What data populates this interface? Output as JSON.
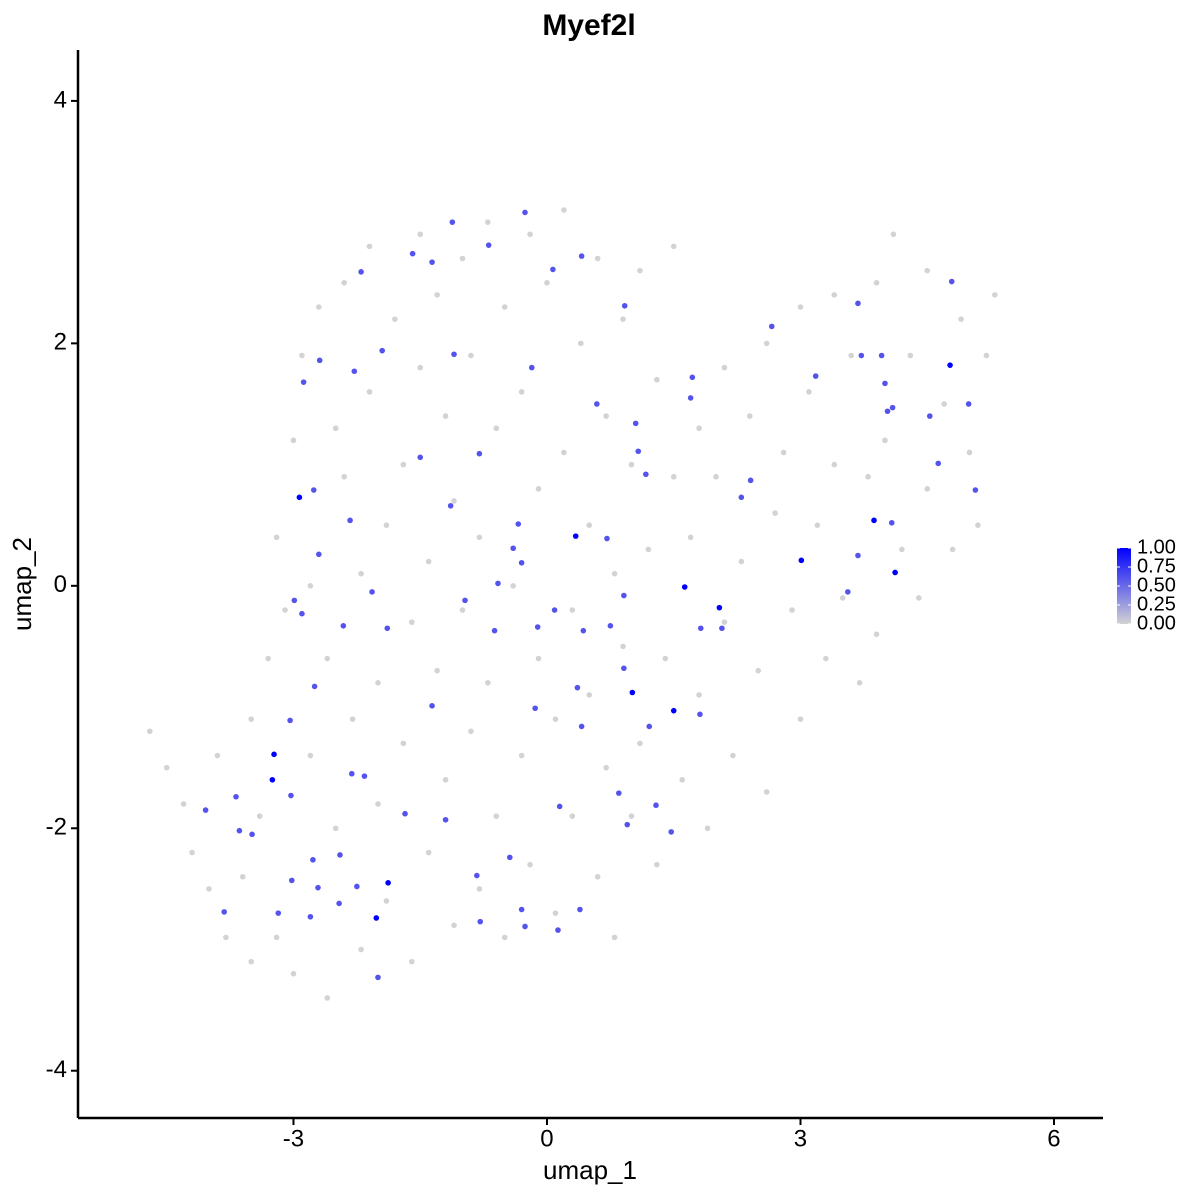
{
  "chart_data": {
    "type": "scatter",
    "title": "Myef2l",
    "x_label": "umap_1",
    "y_label": "umap_2",
    "xlim": [
      -5.55,
      6.58
    ],
    "ylim": [
      -4.39,
      4.42
    ],
    "xticks": [
      -3,
      0,
      3,
      6
    ],
    "yticks": [
      -4,
      -2,
      0,
      2,
      4
    ],
    "color_low": "#d3d3d3",
    "color_high": "#0000ff",
    "color_lim": [
      0,
      1
    ],
    "colorbar_ticks": [
      {
        "value": 1,
        "label": "1.00"
      },
      {
        "value": 0.75,
        "label": "0.75"
      },
      {
        "value": 0.5,
        "label": "0.50"
      },
      {
        "value": 0.25,
        "label": "0.25"
      },
      {
        "value": 0,
        "label": "0.00"
      }
    ],
    "x": [
      -4.7,
      -4.5,
      -4.3,
      -4.2,
      -4.0,
      -3.9,
      -3.8,
      -3.6,
      -3.5,
      -3.5,
      -3.3,
      -3.4,
      -3.2,
      -3.1,
      -3.2,
      -3.0,
      -3.0,
      -2.9,
      -2.8,
      -2.8,
      -2.7,
      -2.6,
      -2.6,
      -2.5,
      -2.5,
      -2.4,
      -2.4,
      -2.3,
      -2.2,
      -2.2,
      -2.1,
      -2.1,
      -2.0,
      -2.0,
      -1.9,
      -1.9,
      -1.8,
      -1.7,
      -1.7,
      -1.6,
      -1.6,
      -1.5,
      -1.5,
      -1.4,
      -1.4,
      -1.3,
      -1.3,
      -1.2,
      -1.2,
      -1.1,
      -1.1,
      -1.0,
      -1.0,
      -0.9,
      -0.9,
      -0.8,
      -0.8,
      -0.7,
      -0.7,
      -0.6,
      -0.6,
      -0.5,
      -0.5,
      -0.4,
      -0.3,
      -0.3,
      -0.2,
      -0.2,
      -0.1,
      -0.1,
      0.0,
      0.1,
      0.1,
      0.2,
      0.2,
      0.3,
      0.3,
      0.4,
      0.5,
      0.5,
      0.6,
      0.6,
      0.7,
      0.7,
      0.8,
      0.8,
      0.9,
      0.9,
      1.0,
      1.0,
      1.1,
      1.1,
      1.2,
      1.3,
      1.3,
      1.4,
      1.5,
      1.5,
      1.6,
      1.7,
      1.8,
      1.8,
      1.9,
      2.0,
      2.1,
      2.1,
      2.2,
      2.3,
      2.4,
      2.5,
      2.6,
      2.6,
      2.7,
      2.8,
      2.9,
      3.0,
      3.0,
      3.1,
      3.2,
      3.3,
      3.4,
      3.4,
      3.5,
      3.6,
      3.7,
      3.8,
      3.9,
      3.9,
      4.0,
      4.1,
      4.2,
      4.3,
      4.4,
      4.5,
      4.5,
      4.7,
      4.8,
      4.9,
      5.0,
      5.1,
      5.2,
      5.3,
      4.79,
      4.0,
      3.96,
      3.72,
      3.68,
      3.18,
      2.66,
      1.72,
      1.7,
      0.92,
      0.41,
      0.07,
      -0.26,
      -0.69,
      -1.12,
      -1.59,
      -1.36,
      -2.2,
      -2.88,
      -2.69,
      -2.28,
      -1.95,
      -1.1,
      -0.18,
      0.59,
      1.05,
      1.08,
      -0.8,
      -1.5,
      -2.76,
      -2.33,
      -2.7,
      -2.99,
      -2.9,
      -2.41,
      -2.07,
      -1.89,
      -1.14,
      -0.34,
      -0.4,
      -0.3,
      -0.58,
      -0.97,
      -0.62,
      -0.11,
      0.09,
      0.43,
      0.75,
      0.91,
      0.71,
      1.17,
      2.3,
      2.41,
      2.07,
      1.82,
      0.91,
      0.36,
      -0.14,
      0.41,
      1.21,
      1.81,
      0.85,
      1.29,
      1.47,
      0.95,
      0.15,
      -0.44,
      -0.83,
      -1.2,
      -1.68,
      -2.16,
      -2.31,
      -1.36,
      -3.04,
      -2.75,
      -4.04,
      -3.68,
      -3.64,
      -3.49,
      -3.03,
      -3.02,
      -2.77,
      -2.71,
      -3.18,
      -3.82,
      -2.8,
      -2.45,
      -2.25,
      -2.46,
      -2.0,
      -0.79,
      -0.3,
      -0.26,
      0.13,
      0.39,
      3.56,
      3.68,
      4.08,
      4.63,
      5.07,
      4.99,
      4.53,
      4.09,
      4.03,
      4.77,
      -2.93,
      0.34,
      3.01,
      3.87,
      4.12,
      1.63,
      2.04,
      1.01,
      1.5,
      -3.23,
      -3.25,
      -1.88,
      -2.02
    ],
    "y": [
      -1.2,
      -1.5,
      -1.8,
      -2.2,
      -2.5,
      -1.4,
      -2.9,
      -2.4,
      -1.1,
      -3.1,
      -0.6,
      -1.9,
      -2.9,
      -0.2,
      0.4,
      1.2,
      -3.2,
      1.9,
      -1.4,
      0.0,
      2.3,
      -3.4,
      -0.6,
      1.3,
      -2.0,
      0.9,
      2.5,
      -1.1,
      -3.0,
      0.1,
      2.8,
      1.6,
      -1.8,
      -0.8,
      0.5,
      -2.6,
      2.2,
      -1.3,
      1.0,
      -3.1,
      -0.3,
      2.9,
      1.8,
      -2.2,
      0.2,
      -0.7,
      2.4,
      1.4,
      -1.6,
      -2.8,
      0.7,
      2.7,
      -0.2,
      -1.2,
      1.9,
      -2.5,
      0.4,
      3.0,
      -0.8,
      1.3,
      -1.9,
      2.3,
      -2.9,
      0.0,
      -1.4,
      1.6,
      2.9,
      -2.3,
      0.8,
      -0.6,
      2.5,
      -1.1,
      -2.7,
      1.1,
      3.1,
      -0.2,
      -1.9,
      2.0,
      0.5,
      -0.9,
      2.7,
      -2.4,
      1.4,
      -1.5,
      0.1,
      -2.9,
      2.2,
      -0.5,
      1.0,
      -1.9,
      2.6,
      -1.3,
      0.3,
      1.7,
      -2.3,
      -0.6,
      0.9,
      2.8,
      -1.6,
      0.4,
      1.3,
      -0.9,
      -2.0,
      0.9,
      1.8,
      -0.3,
      -1.4,
      0.2,
      1.4,
      -0.7,
      2.0,
      -1.7,
      0.6,
      1.1,
      -0.2,
      2.3,
      -1.1,
      1.6,
      0.5,
      -0.6,
      2.4,
      1.0,
      -0.1,
      1.9,
      -0.8,
      0.9,
      2.5,
      -0.4,
      1.2,
      2.9,
      0.3,
      1.9,
      -0.1,
      2.6,
      0.8,
      1.5,
      0.3,
      2.2,
      1.1,
      0.5,
      1.9,
      2.4,
      2.51,
      1.67,
      1.9,
      1.9,
      2.33,
      1.73,
      2.14,
      1.72,
      1.55,
      2.31,
      2.72,
      2.61,
      3.08,
      2.81,
      3.0,
      2.74,
      2.67,
      2.59,
      1.68,
      1.86,
      1.77,
      1.94,
      1.91,
      1.8,
      1.5,
      1.34,
      1.11,
      1.09,
      1.06,
      0.79,
      0.54,
      0.26,
      -0.12,
      -0.23,
      -0.33,
      -0.05,
      -0.35,
      0.66,
      0.51,
      0.31,
      0.19,
      0.02,
      -0.12,
      -0.37,
      -0.34,
      -0.2,
      -0.37,
      -0.33,
      -0.08,
      0.39,
      0.92,
      0.73,
      0.87,
      -0.35,
      -0.35,
      -0.68,
      -0.84,
      -1.01,
      -1.16,
      -1.16,
      -1.06,
      -1.71,
      -1.81,
      -2.03,
      -1.97,
      -1.82,
      -2.24,
      -2.39,
      -1.93,
      -1.88,
      -1.57,
      -1.55,
      -0.99,
      -1.11,
      -0.83,
      -1.85,
      -1.74,
      -2.02,
      -2.05,
      -1.73,
      -2.43,
      -2.26,
      -2.49,
      -2.7,
      -2.69,
      -2.73,
      -2.22,
      -2.48,
      -2.62,
      -3.23,
      -2.77,
      -2.67,
      -2.81,
      -2.84,
      -2.67,
      -0.05,
      0.25,
      0.52,
      1.01,
      0.79,
      1.5,
      1.4,
      1.47,
      1.44,
      1.82,
      0.73,
      0.41,
      0.21,
      0.54,
      0.11,
      -0.01,
      -0.18,
      -0.88,
      -1.03,
      -1.39,
      -1.6,
      -2.45,
      -2.74
    ],
    "values": [
      0,
      0,
      0,
      0,
      0,
      0,
      0,
      0,
      0,
      0,
      0,
      0,
      0,
      0,
      0,
      0,
      0,
      0,
      0,
      0,
      0,
      0,
      0,
      0,
      0,
      0,
      0,
      0,
      0,
      0,
      0,
      0,
      0,
      0,
      0,
      0,
      0,
      0,
      0,
      0,
      0,
      0,
      0,
      0,
      0,
      0,
      0,
      0,
      0,
      0,
      0,
      0,
      0,
      0,
      0,
      0,
      0,
      0,
      0,
      0,
      0,
      0,
      0,
      0,
      0,
      0,
      0,
      0,
      0,
      0,
      0,
      0,
      0,
      0,
      0,
      0,
      0,
      0,
      0,
      0,
      0,
      0,
      0,
      0,
      0,
      0,
      0,
      0,
      0,
      0,
      0,
      0,
      0,
      0,
      0,
      0,
      0,
      0,
      0,
      0,
      0,
      0,
      0,
      0,
      0,
      0,
      0,
      0,
      0,
      0,
      0,
      0,
      0,
      0,
      0,
      0,
      0,
      0,
      0,
      0,
      0,
      0,
      0,
      0,
      0,
      0,
      0,
      0,
      0,
      0,
      0,
      0,
      0,
      0,
      0,
      0,
      0,
      0,
      0,
      0,
      0,
      0,
      0.6,
      0.6,
      0.6,
      0.6,
      0.6,
      0.6,
      0.6,
      0.6,
      0.6,
      0.6,
      0.6,
      0.6,
      0.6,
      0.6,
      0.6,
      0.6,
      0.6,
      0.6,
      0.6,
      0.6,
      0.6,
      0.6,
      0.6,
      0.6,
      0.6,
      0.6,
      0.6,
      0.6,
      0.6,
      0.6,
      0.6,
      0.6,
      0.6,
      0.6,
      0.6,
      0.6,
      0.6,
      0.6,
      0.6,
      0.6,
      0.6,
      0.6,
      0.6,
      0.6,
      0.6,
      0.6,
      0.6,
      0.6,
      0.6,
      0.6,
      0.6,
      0.6,
      0.6,
      0.6,
      0.6,
      0.6,
      0.6,
      0.6,
      0.6,
      0.6,
      0.6,
      0.6,
      0.6,
      0.6,
      0.6,
      0.6,
      0.6,
      0.6,
      0.6,
      0.6,
      0.6,
      0.6,
      0.6,
      0.6,
      0.6,
      0.6,
      0.6,
      0.6,
      0.6,
      0.6,
      0.6,
      0.6,
      0.6,
      0.6,
      0.6,
      0.6,
      0.6,
      0.6,
      0.6,
      0.6,
      0.6,
      0.6,
      0.6,
      0.6,
      0.6,
      0.6,
      0.6,
      0.6,
      0.6,
      0.6,
      0.6,
      0.6,
      0.6,
      0.6,
      1,
      1,
      1,
      1,
      1,
      1,
      1,
      1,
      1,
      1,
      1,
      1,
      1,
      1
    ]
  }
}
